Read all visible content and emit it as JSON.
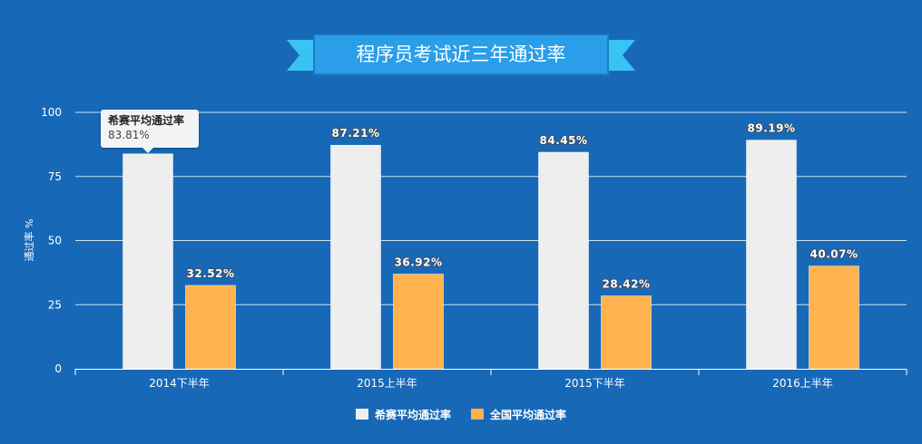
{
  "colors": {
    "background": "#1769b8",
    "series1": "#eeeeee",
    "series2": "#ffb24d",
    "banner": "#2a9ee8",
    "ribbon": "#39c3f5"
  },
  "chart_data": {
    "type": "bar",
    "title": "程序员考试近三年通过率",
    "ylabel": "通过率 %",
    "xlabel": "",
    "ylim": [
      0,
      100
    ],
    "yticks": [
      0,
      25,
      50,
      75,
      100
    ],
    "categories": [
      "2014下半年",
      "2015上半年",
      "2015下半年",
      "2016上半年"
    ],
    "series": [
      {
        "name": "希赛平均通过率",
        "values": [
          83.81,
          87.21,
          84.45,
          89.19
        ],
        "labels": [
          "83.81%",
          "87.21%",
          "84.45%",
          "89.19%"
        ]
      },
      {
        "name": "全国平均通过率",
        "values": [
          32.52,
          36.92,
          28.42,
          40.07
        ],
        "labels": [
          "32.52%",
          "36.92%",
          "28.42%",
          "40.07%"
        ]
      }
    ],
    "grid": true,
    "legend": "bottom"
  },
  "tooltip": {
    "series": "希赛平均通过率",
    "value": "83.81%"
  }
}
